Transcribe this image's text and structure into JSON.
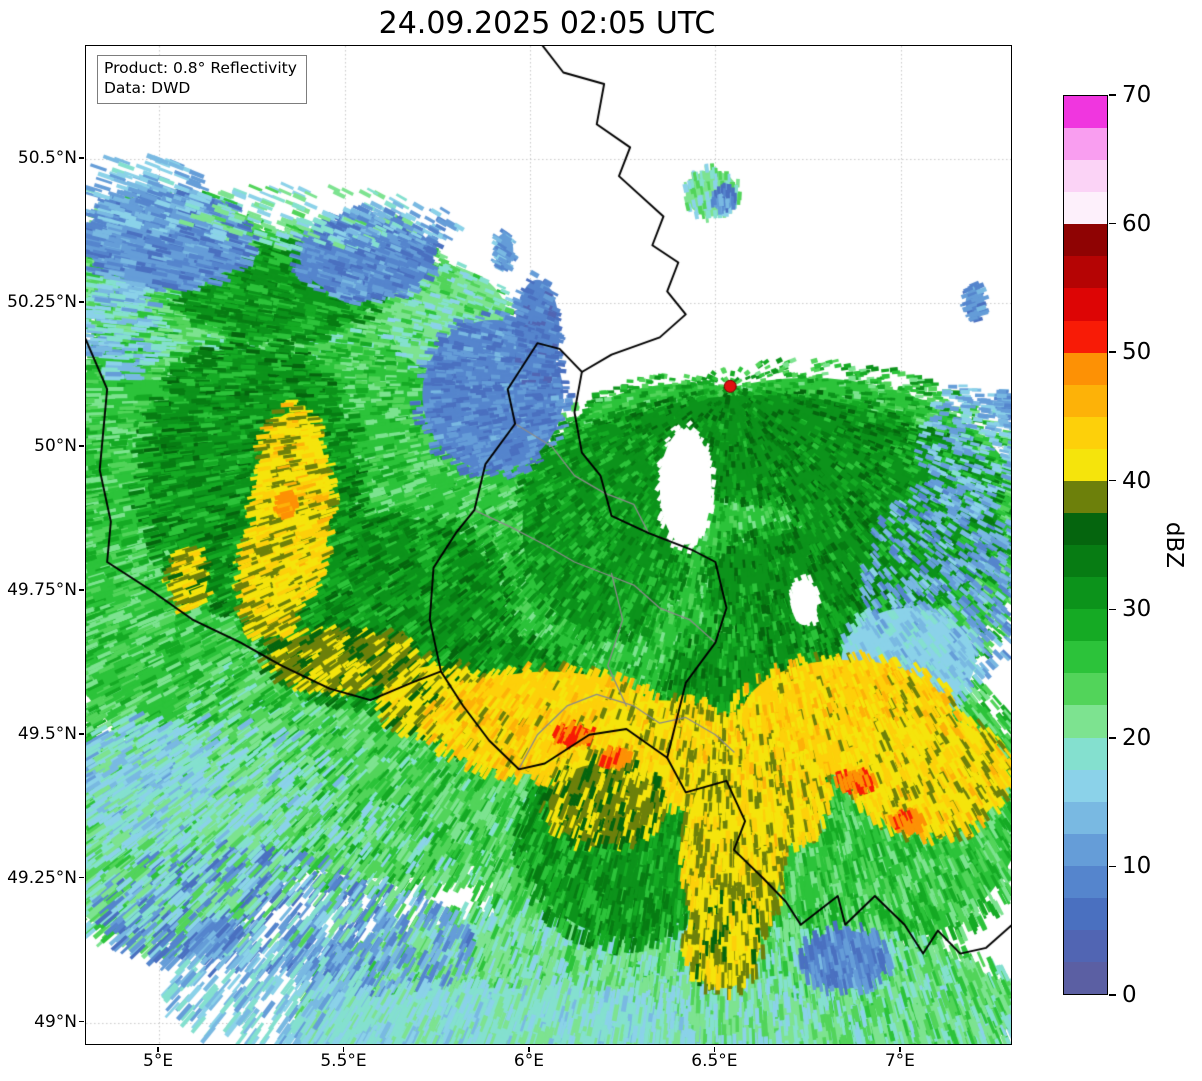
{
  "title": "24.09.2025 02:05 UTC",
  "info_box": {
    "line1": "Product: 0.8° Reflectivity",
    "line2": "Data: DWD"
  },
  "axes": {
    "extent": {
      "lon_min": 4.803,
      "lon_max": 7.297,
      "lat_min": 48.963,
      "lat_max": 50.696
    },
    "grid": true,
    "x_ticks": [
      {
        "value": 5.0,
        "label": "5°E"
      },
      {
        "value": 5.5,
        "label": "5.5°E"
      },
      {
        "value": 6.0,
        "label": "6°E"
      },
      {
        "value": 6.5,
        "label": "6.5°E"
      },
      {
        "value": 7.0,
        "label": "7°E"
      }
    ],
    "y_ticks": [
      {
        "value": 50.5,
        "label": "50.5°N"
      },
      {
        "value": 50.25,
        "label": "50.25°N"
      },
      {
        "value": 50.0,
        "label": "50°N"
      },
      {
        "value": 49.75,
        "label": "49.75°N"
      },
      {
        "value": 49.5,
        "label": "49.5°N"
      },
      {
        "value": 49.25,
        "label": "49.25°N"
      },
      {
        "value": 49.0,
        "label": "49°N"
      }
    ]
  },
  "colorbar": {
    "label": "dBZ",
    "vmin": 0,
    "vmax": 70,
    "step": 2.5,
    "tick_values": [
      0,
      10,
      20,
      30,
      40,
      50,
      60,
      70
    ],
    "colors": [
      "#5b5fa3",
      "#5165b3",
      "#4a70c0",
      "#5585cd",
      "#659dd8",
      "#79b9e2",
      "#8bd2e9",
      "#84e0cf",
      "#7de390",
      "#52d45a",
      "#2cc33a",
      "#15aa24",
      "#0c931b",
      "#077c13",
      "#05650e",
      "#6d800b",
      "#f5e40c",
      "#fdd00a",
      "#fdb208",
      "#fd9105",
      "#f81b06",
      "#dd0505",
      "#b50404",
      "#8f0303",
      "#fdf0fb",
      "#fbd3f6",
      "#f99ef0",
      "#f036df"
    ]
  },
  "marker": {
    "lon": 6.54,
    "lat": 50.105,
    "color": "#e01010",
    "edge": "#7a0000"
  },
  "borders": {
    "country_color": "#000000",
    "admin_color": "#8a8a8a",
    "country_lines": [
      [
        [
          6.03,
          50.7
        ],
        [
          6.09,
          50.65
        ],
        [
          6.2,
          50.63
        ],
        [
          6.18,
          50.56
        ],
        [
          6.27,
          50.52
        ],
        [
          6.24,
          50.47
        ],
        [
          6.36,
          50.4
        ],
        [
          6.33,
          50.35
        ],
        [
          6.4,
          50.32
        ],
        [
          6.37,
          50.27
        ],
        [
          6.42,
          50.23
        ],
        [
          6.35,
          50.19
        ],
        [
          6.22,
          50.16
        ],
        [
          6.14,
          50.13
        ]
      ],
      [
        [
          6.14,
          50.13
        ],
        [
          6.12,
          50.06
        ],
        [
          6.14,
          49.99
        ],
        [
          6.19,
          49.95
        ],
        [
          6.22,
          49.88
        ],
        [
          6.32,
          49.85
        ],
        [
          6.44,
          49.82
        ],
        [
          6.5,
          49.8
        ],
        [
          6.53,
          49.72
        ],
        [
          6.5,
          49.66
        ],
        [
          6.42,
          49.59
        ],
        [
          6.37,
          49.46
        ],
        [
          6.26,
          49.51
        ],
        [
          6.16,
          49.5
        ],
        [
          6.04,
          49.45
        ],
        [
          5.97,
          49.44
        ],
        [
          5.89,
          49.49
        ],
        [
          5.82,
          49.55
        ],
        [
          5.76,
          49.61
        ],
        [
          5.73,
          49.7
        ],
        [
          5.74,
          49.79
        ],
        [
          5.8,
          49.85
        ],
        [
          5.85,
          49.89
        ],
        [
          5.88,
          49.97
        ],
        [
          5.96,
          50.04
        ],
        [
          5.94,
          50.1
        ],
        [
          6.02,
          50.18
        ],
        [
          6.08,
          50.17
        ],
        [
          6.14,
          50.13
        ]
      ],
      [
        [
          4.8,
          50.19
        ],
        [
          4.86,
          50.1
        ],
        [
          4.84,
          49.96
        ],
        [
          4.87,
          49.87
        ],
        [
          4.86,
          49.8
        ],
        [
          4.98,
          49.75
        ],
        [
          5.09,
          49.7
        ],
        [
          5.22,
          49.66
        ],
        [
          5.33,
          49.62
        ],
        [
          5.46,
          49.58
        ],
        [
          5.57,
          49.56
        ],
        [
          5.68,
          49.59
        ],
        [
          5.76,
          49.61
        ]
      ],
      [
        [
          6.37,
          49.46
        ],
        [
          6.42,
          49.4
        ],
        [
          6.53,
          49.42
        ],
        [
          6.58,
          49.35
        ],
        [
          6.55,
          49.3
        ],
        [
          6.63,
          49.25
        ],
        [
          6.69,
          49.21
        ],
        [
          6.73,
          49.17
        ],
        [
          6.83,
          49.22
        ],
        [
          6.85,
          49.17
        ],
        [
          6.93,
          49.22
        ],
        [
          7.01,
          49.17
        ],
        [
          7.06,
          49.12
        ],
        [
          7.1,
          49.16
        ],
        [
          7.16,
          49.12
        ],
        [
          7.23,
          49.13
        ],
        [
          7.3,
          49.17
        ]
      ]
    ],
    "admin_lines": [
      [
        [
          5.96,
          50.04
        ],
        [
          6.06,
          50.0
        ],
        [
          6.12,
          49.95
        ],
        [
          6.2,
          49.92
        ],
        [
          6.28,
          49.9
        ],
        [
          6.32,
          49.85
        ]
      ],
      [
        [
          5.85,
          49.89
        ],
        [
          5.95,
          49.86
        ],
        [
          6.04,
          49.83
        ],
        [
          6.12,
          49.8
        ],
        [
          6.2,
          49.78
        ],
        [
          6.28,
          49.76
        ],
        [
          6.35,
          49.72
        ],
        [
          6.43,
          49.7
        ],
        [
          6.5,
          49.66
        ]
      ],
      [
        [
          6.22,
          49.78
        ],
        [
          6.25,
          49.7
        ],
        [
          6.21,
          49.62
        ],
        [
          6.26,
          49.55
        ]
      ],
      [
        [
          5.97,
          49.44
        ],
        [
          6.02,
          49.5
        ],
        [
          6.1,
          49.55
        ],
        [
          6.18,
          49.57
        ],
        [
          6.28,
          49.55
        ],
        [
          6.35,
          49.52
        ],
        [
          6.42,
          49.53
        ],
        [
          6.5,
          49.5
        ],
        [
          6.55,
          49.47
        ]
      ]
    ]
  },
  "radar_cells_format": "lon,lat,rx_deg,ry_deg,dbz,density (dbz -1 = clear/no echo)",
  "radar_cells": [
    [
      5.35,
      49.85,
      0.68,
      0.47,
      25,
      1
    ],
    [
      5.05,
      50.3,
      0.28,
      0.13,
      23,
      1
    ],
    [
      5.45,
      50.27,
      0.33,
      0.11,
      24,
      1
    ],
    [
      5.78,
      50.22,
      0.16,
      0.09,
      21,
      0.85
    ],
    [
      6.75,
      49.85,
      0.6,
      0.27,
      26,
      1
    ],
    [
      6.42,
      49.98,
      0.35,
      0.13,
      27,
      1
    ],
    [
      6.3,
      49.72,
      0.42,
      0.28,
      26,
      1
    ],
    [
      5.62,
      49.47,
      0.52,
      0.22,
      24,
      1
    ],
    [
      6.38,
      49.22,
      0.48,
      0.26,
      24,
      1
    ],
    [
      6.95,
      49.38,
      0.38,
      0.24,
      25,
      1
    ],
    [
      6.05,
      49.04,
      0.6,
      0.15,
      21,
      1
    ],
    [
      6.85,
      49.02,
      0.45,
      0.12,
      22,
      1
    ],
    [
      5.0,
      49.32,
      0.3,
      0.18,
      21,
      0.8
    ],
    [
      6.3,
      48.99,
      0.55,
      0.08,
      20,
      0.9
    ],
    [
      5.32,
      50.27,
      0.26,
      0.08,
      30,
      1
    ],
    [
      5.25,
      49.95,
      0.28,
      0.22,
      31,
      1
    ],
    [
      5.6,
      49.72,
      0.33,
      0.16,
      31,
      1
    ],
    [
      6.62,
      50.0,
      0.42,
      0.09,
      32,
      1
    ],
    [
      6.95,
      49.93,
      0.26,
      0.1,
      32,
      1
    ],
    [
      6.2,
      49.86,
      0.22,
      0.18,
      30,
      1
    ],
    [
      6.65,
      49.56,
      0.28,
      0.13,
      31,
      1
    ],
    [
      6.25,
      49.32,
      0.26,
      0.17,
      30,
      1
    ],
    [
      5.92,
      49.56,
      0.22,
      0.1,
      31,
      1
    ],
    [
      6.78,
      49.76,
      0.3,
      0.1,
      31,
      1
    ],
    [
      7.1,
      49.88,
      0.16,
      0.14,
      30,
      1
    ],
    [
      5.9,
      50.09,
      0.19,
      0.13,
      9,
      1
    ],
    [
      5.02,
      50.36,
      0.22,
      0.08,
      10,
      0.9
    ],
    [
      5.56,
      50.33,
      0.18,
      0.07,
      9,
      0.9
    ],
    [
      6.02,
      50.2,
      0.06,
      0.09,
      8,
      0.85
    ],
    [
      5.2,
      49.2,
      0.33,
      0.1,
      10,
      0.45
    ],
    [
      5.6,
      49.12,
      0.22,
      0.1,
      11,
      0.5
    ],
    [
      6.85,
      49.11,
      0.11,
      0.05,
      9,
      0.9
    ],
    [
      7.12,
      49.76,
      0.2,
      0.16,
      12,
      0.7
    ],
    [
      7.18,
      50.0,
      0.12,
      0.1,
      14,
      0.7
    ],
    [
      4.95,
      49.42,
      0.16,
      0.1,
      16,
      0.7
    ],
    [
      5.9,
      48.99,
      0.5,
      0.07,
      18,
      0.9
    ],
    [
      7.02,
      49.63,
      0.18,
      0.09,
      16,
      0.8
    ],
    [
      4.9,
      50.2,
      0.1,
      0.08,
      15,
      0.6
    ],
    [
      5.3,
      49.05,
      0.25,
      0.08,
      16,
      0.4
    ],
    [
      5.3,
      49.27,
      0.45,
      0.12,
      20,
      0.25
    ],
    [
      5.15,
      49.42,
      0.3,
      0.1,
      18,
      0.3
    ],
    [
      4.95,
      50.44,
      0.16,
      0.06,
      14,
      0.35
    ],
    [
      5.4,
      50.4,
      0.3,
      0.05,
      19,
      0.3
    ],
    [
      5.65,
      50.38,
      0.15,
      0.04,
      12,
      0.3
    ],
    [
      6.42,
      49.93,
      0.07,
      0.1,
      -1,
      1
    ],
    [
      6.74,
      49.73,
      0.035,
      0.04,
      -1,
      1
    ],
    [
      6.49,
      50.44,
      0.07,
      0.04,
      20,
      0.9
    ],
    [
      6.52,
      50.43,
      0.03,
      0.02,
      10,
      1
    ],
    [
      4.99,
      50.42,
      0.03,
      0.035,
      12,
      0.9
    ],
    [
      5.52,
      50.28,
      0.03,
      0.03,
      10,
      0.9
    ],
    [
      5.93,
      50.34,
      0.025,
      0.03,
      12,
      0.9
    ],
    [
      7.2,
      50.25,
      0.025,
      0.03,
      10,
      0.9
    ],
    [
      7.28,
      50.07,
      0.02,
      0.025,
      12,
      0.9
    ],
    [
      5.15,
      49.15,
      0.06,
      0.025,
      10,
      0.9
    ],
    [
      5.36,
      49.9,
      0.1,
      0.16,
      42,
      1
    ],
    [
      5.3,
      49.77,
      0.08,
      0.1,
      41,
      1
    ],
    [
      5.08,
      49.77,
      0.05,
      0.05,
      40,
      0.9
    ],
    [
      5.5,
      49.63,
      0.2,
      0.05,
      39,
      0.9
    ],
    [
      5.75,
      49.56,
      0.15,
      0.06,
      40,
      0.9
    ],
    [
      6.05,
      49.52,
      0.3,
      0.09,
      43,
      1
    ],
    [
      6.35,
      49.47,
      0.22,
      0.09,
      42,
      1
    ],
    [
      6.85,
      49.53,
      0.28,
      0.1,
      43,
      1
    ],
    [
      7.08,
      49.43,
      0.2,
      0.1,
      42,
      1
    ],
    [
      6.55,
      49.3,
      0.13,
      0.16,
      41,
      1
    ],
    [
      6.52,
      49.14,
      0.1,
      0.08,
      40,
      0.9
    ],
    [
      6.68,
      49.4,
      0.12,
      0.09,
      42,
      1
    ],
    [
      6.2,
      49.38,
      0.15,
      0.07,
      39,
      0.9
    ],
    [
      6.12,
      49.5,
      0.05,
      0.015,
      50,
      1
    ],
    [
      6.23,
      49.46,
      0.04,
      0.012,
      49,
      1
    ],
    [
      6.88,
      49.42,
      0.05,
      0.013,
      50,
      1
    ],
    [
      7.02,
      49.35,
      0.04,
      0.012,
      49,
      1
    ],
    [
      5.34,
      49.9,
      0.02,
      0.02,
      48,
      1
    ]
  ]
}
